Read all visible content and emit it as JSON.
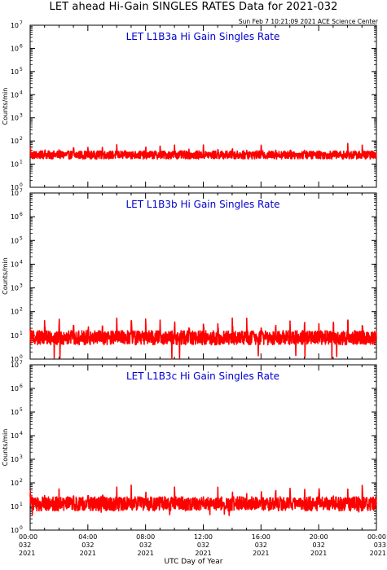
{
  "title": "LET ahead Hi-Gain SINGLES RATES Data for 2021-032",
  "generated": "Sun Feb  7 10:21:09 2021 ACE Science Center",
  "x_axis_title": "UTC Day of Year",
  "colors": {
    "series": "#ff0000",
    "panel_title": "#0000cc",
    "axis": "#000000",
    "background": "#ffffff"
  },
  "chart_data": [
    {
      "type": "line",
      "title": "LET L1B3a Hi Gain Singles Rate",
      "ylabel": "Counts/min",
      "yscale": "log",
      "ylim": [
        1,
        10000000
      ],
      "yticks": [
        "10^0",
        "10^1",
        "10^2",
        "10^3",
        "10^4",
        "10^5",
        "10^6",
        "10^7"
      ],
      "xlim": [
        "2021-032 00:00",
        "2021-033 00:00"
      ],
      "xticks": [
        {
          "time": "00:00",
          "day": "032",
          "year": "2021"
        },
        {
          "time": "04:00",
          "day": "032",
          "year": "2021"
        },
        {
          "time": "08:00",
          "day": "032",
          "year": "2021"
        },
        {
          "time": "12:00",
          "day": "032",
          "year": "2021"
        },
        {
          "time": "16:00",
          "day": "032",
          "year": "2021"
        },
        {
          "time": "20:00",
          "day": "032",
          "year": "2021"
        },
        {
          "time": "00:00",
          "day": "033",
          "year": "2021"
        }
      ],
      "series": [
        {
          "baseline": 25,
          "peak": 60,
          "min": 13
        }
      ]
    },
    {
      "type": "line",
      "title": "LET L1B3b Hi Gain Singles Rate",
      "ylabel": "Counts/min",
      "yscale": "log",
      "ylim": [
        1,
        10000000
      ],
      "yticks": [
        "10^0",
        "10^1",
        "10^2",
        "10^3",
        "10^4",
        "10^5",
        "10^6",
        "10^7"
      ],
      "xlim": [
        "2021-032 00:00",
        "2021-033 00:00"
      ],
      "xticks": [],
      "series": [
        {
          "baseline": 8,
          "peak": 45,
          "min": 1
        }
      ]
    },
    {
      "type": "line",
      "title": "LET L1B3c Hi Gain Singles Rate",
      "ylabel": "Counts/min",
      "yscale": "log",
      "ylim": [
        1,
        10000000
      ],
      "yticks": [
        "10^0",
        "10^1",
        "10^2",
        "10^3",
        "10^4",
        "10^5",
        "10^6",
        "10^7"
      ],
      "xlim": [
        "2021-032 00:00",
        "2021-033 00:00"
      ],
      "xticks": [],
      "series": [
        {
          "baseline": 13,
          "peak": 55,
          "min": 4
        }
      ]
    }
  ]
}
